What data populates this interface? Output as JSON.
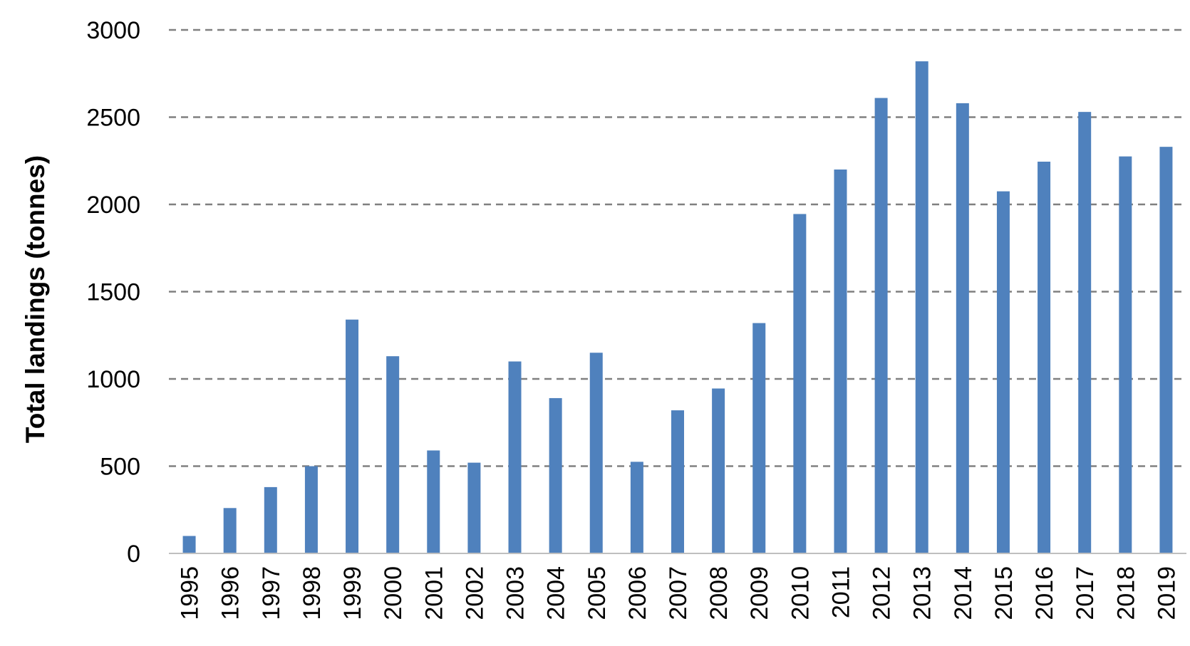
{
  "chart_data": {
    "type": "bar",
    "title": "",
    "xlabel": "",
    "ylabel": "Total landings (tonnes)",
    "ylim": [
      0,
      3000
    ],
    "yticks": [
      0,
      500,
      1000,
      1500,
      2000,
      2500,
      3000
    ],
    "grid": "horizontal dashed",
    "legend": "none",
    "bar_color": "#4f81bd",
    "categories": [
      "1995",
      "1996",
      "1997",
      "1998",
      "1999",
      "2000",
      "2001",
      "2002",
      "2003",
      "2004",
      "2005",
      "2006",
      "2007",
      "2008",
      "2009",
      "2010",
      "2011",
      "2012",
      "2013",
      "2014",
      "2015",
      "2016",
      "2017",
      "2018",
      "2019"
    ],
    "values": [
      100,
      260,
      380,
      500,
      1340,
      1130,
      590,
      520,
      1100,
      890,
      1150,
      525,
      820,
      945,
      1320,
      1945,
      2200,
      2610,
      2820,
      2580,
      2075,
      2245,
      2530,
      2275,
      2330
    ]
  }
}
